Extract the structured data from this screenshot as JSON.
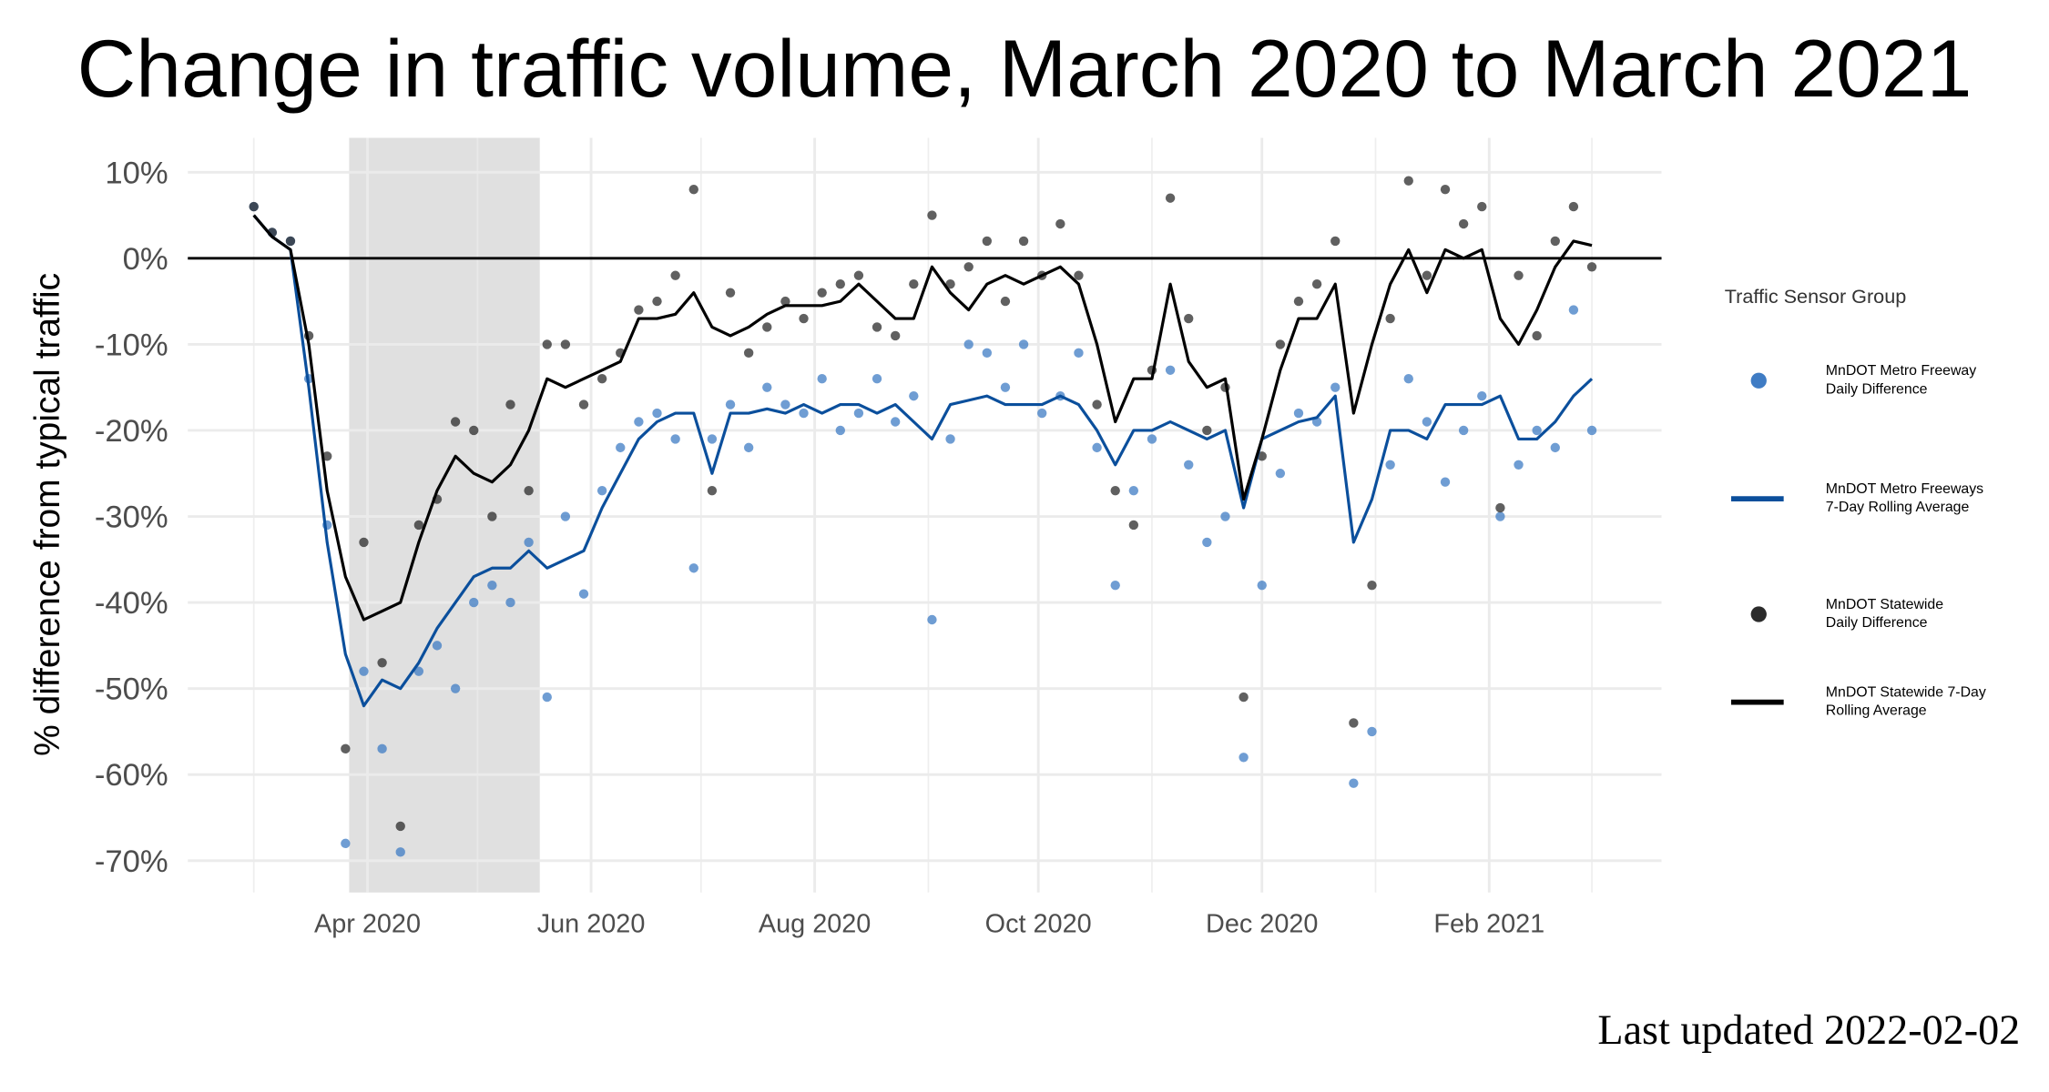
{
  "chart_data": {
    "type": "line",
    "title": "Change in traffic volume, March 2020 to March 2021",
    "y_label": "% difference from typical traffic",
    "legend_title": "Traffic Sensor Group",
    "legend": "right",
    "footer": "Last updated 2022-02-02",
    "grid": true,
    "reference_line": 0,
    "shaded_period": [
      "2020-03-27",
      "2020-05-18"
    ],
    "xlim": [
      "2020-02-12",
      "2021-03-20"
    ],
    "xticks": [
      {
        "value": "2020-04-01",
        "label": "Apr 2020"
      },
      {
        "value": "2020-06-01",
        "label": "Jun 2020"
      },
      {
        "value": "2020-08-01",
        "label": "Aug 2020"
      },
      {
        "value": "2020-10-01",
        "label": "Oct 2020"
      },
      {
        "value": "2020-12-01",
        "label": "Dec 2020"
      },
      {
        "value": "2021-02-01",
        "label": "Feb 2021"
      }
    ],
    "xminorticks": [
      "2020-03-01",
      "2020-05-01",
      "2020-07-01",
      "2020-09-01",
      "2020-11-01",
      "2021-01-01",
      "2021-03-01"
    ],
    "ylim": [
      -73.7,
      14
    ],
    "yticks": [
      {
        "value": 10,
        "label": "10%"
      },
      {
        "value": 0,
        "label": "0%"
      },
      {
        "value": -10,
        "label": "-10%"
      },
      {
        "value": -20,
        "label": "-20%"
      },
      {
        "value": -30,
        "label": "-30%"
      },
      {
        "value": -40,
        "label": "-40%"
      },
      {
        "value": -50,
        "label": "-50%"
      },
      {
        "value": -60,
        "label": "-60%"
      },
      {
        "value": -70,
        "label": "-70%"
      }
    ],
    "x": [
      "2020-03-01",
      "2020-03-06",
      "2020-03-11",
      "2020-03-16",
      "2020-03-21",
      "2020-03-26",
      "2020-03-31",
      "2020-04-05",
      "2020-04-10",
      "2020-04-15",
      "2020-04-20",
      "2020-04-25",
      "2020-04-30",
      "2020-05-05",
      "2020-05-10",
      "2020-05-15",
      "2020-05-20",
      "2020-05-25",
      "2020-05-30",
      "2020-06-04",
      "2020-06-09",
      "2020-06-14",
      "2020-06-19",
      "2020-06-24",
      "2020-06-29",
      "2020-07-04",
      "2020-07-09",
      "2020-07-14",
      "2020-07-19",
      "2020-07-24",
      "2020-07-29",
      "2020-08-03",
      "2020-08-08",
      "2020-08-13",
      "2020-08-18",
      "2020-08-23",
      "2020-08-28",
      "2020-09-02",
      "2020-09-07",
      "2020-09-12",
      "2020-09-17",
      "2020-09-22",
      "2020-09-27",
      "2020-10-02",
      "2020-10-07",
      "2020-10-12",
      "2020-10-17",
      "2020-10-22",
      "2020-10-27",
      "2020-11-01",
      "2020-11-06",
      "2020-11-11",
      "2020-11-16",
      "2020-11-21",
      "2020-11-26",
      "2020-12-01",
      "2020-12-06",
      "2020-12-11",
      "2020-12-16",
      "2020-12-21",
      "2020-12-26",
      "2020-12-31",
      "2021-01-05",
      "2021-01-10",
      "2021-01-15",
      "2021-01-20",
      "2021-01-25",
      "2021-01-30",
      "2021-02-04",
      "2021-02-09",
      "2021-02-14",
      "2021-02-19",
      "2021-02-24",
      "2021-03-01"
    ],
    "series": [
      {
        "name": "MnDOT Metro Freeway Daily Difference",
        "style": "points",
        "color": "#3f7cc4",
        "values": [
          6,
          3,
          2,
          -14,
          -31,
          -68,
          -48,
          -57,
          -69,
          -48,
          -45,
          -50,
          -40,
          -38,
          -40,
          -33,
          -51,
          -30,
          -39,
          -27,
          -22,
          -19,
          -18,
          -21,
          -36,
          -21,
          -17,
          -22,
          -15,
          -17,
          -18,
          -14,
          -20,
          -18,
          -14,
          -19,
          -16,
          -42,
          -21,
          -10,
          -11,
          -15,
          -10,
          -18,
          -16,
          -11,
          -22,
          -38,
          -27,
          -21,
          -13,
          -24,
          -33,
          -30,
          -58,
          -38,
          -25,
          -18,
          -19,
          -15,
          -61,
          -55,
          -24,
          -14,
          -19,
          -26,
          -20,
          -16,
          -30,
          -24,
          -20,
          -22,
          -6,
          -20
        ]
      },
      {
        "name": "MnDOT Metro Freeways 7-Day Rolling Average",
        "style": "line",
        "color": "#0b4f9c",
        "values": [
          5,
          2.5,
          1,
          -15,
          -33,
          -46,
          -52,
          -49,
          -50,
          -47,
          -43,
          -40,
          -37,
          -36,
          -36,
          -34,
          -36,
          -35,
          -34,
          -29,
          -25,
          -21,
          -19,
          -18,
          -18,
          -25,
          -18,
          -18,
          -17.5,
          -18,
          -17,
          -18,
          -17,
          -17,
          -18,
          -17,
          -19,
          -21,
          -17,
          -16.5,
          -16,
          -17,
          -17,
          -17,
          -16,
          -17,
          -20,
          -24,
          -20,
          -20,
          -19,
          -20,
          -21,
          -20,
          -29,
          -21,
          -20,
          -19,
          -18.5,
          -16,
          -33,
          -28,
          -20,
          -20,
          -21,
          -17,
          -17,
          -17,
          -16,
          -21,
          -21,
          -19,
          -16,
          -14
        ]
      },
      {
        "name": "MnDOT Statewide Daily Difference",
        "style": "points",
        "color": "#2b2b2b",
        "values": [
          6,
          3,
          2,
          -9,
          -23,
          -57,
          -33,
          -47,
          -66,
          -31,
          -28,
          -19,
          -20,
          -30,
          -17,
          -27,
          -10,
          -10,
          -17,
          -14,
          -11,
          -6,
          -5,
          -2,
          8,
          -27,
          -4,
          -11,
          -8,
          -5,
          -7,
          -4,
          -3,
          -2,
          -8,
          -9,
          -3,
          5,
          -3,
          -1,
          2,
          -5,
          2,
          -2,
          4,
          -2,
          -17,
          -27,
          -31,
          -13,
          7,
          -7,
          -20,
          -15,
          -51,
          -23,
          -10,
          -5,
          -3,
          2,
          -54,
          -38,
          -7,
          9,
          -2,
          8,
          4,
          6,
          -29,
          -2,
          -9,
          2,
          6,
          -1
        ]
      },
      {
        "name": "MnDOT Statewide 7-Day Rolling Average",
        "style": "line",
        "color": "#000000",
        "values": [
          5,
          2.5,
          1,
          -10,
          -27,
          -37,
          -42,
          -41,
          -40,
          -33,
          -27,
          -23,
          -25,
          -26,
          -24,
          -20,
          -14,
          -15,
          -14,
          -13,
          -12,
          -7,
          -7,
          -6.5,
          -4,
          -8,
          -9,
          -8,
          -6.5,
          -5.5,
          -5.5,
          -5.5,
          -5,
          -3,
          -5,
          -7,
          -7,
          -1,
          -4,
          -6,
          -3,
          -2,
          -3,
          -2,
          -1,
          -3,
          -10,
          -19,
          -14,
          -14,
          -3,
          -12,
          -15,
          -14,
          -28,
          -21,
          -13,
          -7,
          -7,
          -3,
          -18,
          -10,
          -3,
          1,
          -4,
          1,
          0,
          1,
          -7,
          -10,
          -6,
          -1,
          2,
          1.5
        ]
      }
    ]
  }
}
